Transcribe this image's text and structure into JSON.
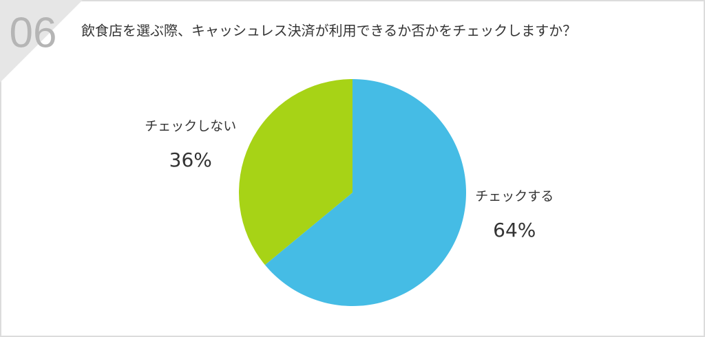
{
  "chart_data": {
    "type": "pie",
    "question_number": "06",
    "title": "飲食店を選ぶ際、キャッシュレス決済が利用できるか否かをチェックしますか？",
    "categories": [
      "チェックする",
      "チェックしない"
    ],
    "values": [
      64,
      36
    ],
    "value_labels": [
      "64%",
      "36%"
    ],
    "colors": [
      "#45bce5",
      "#a7d316"
    ]
  }
}
